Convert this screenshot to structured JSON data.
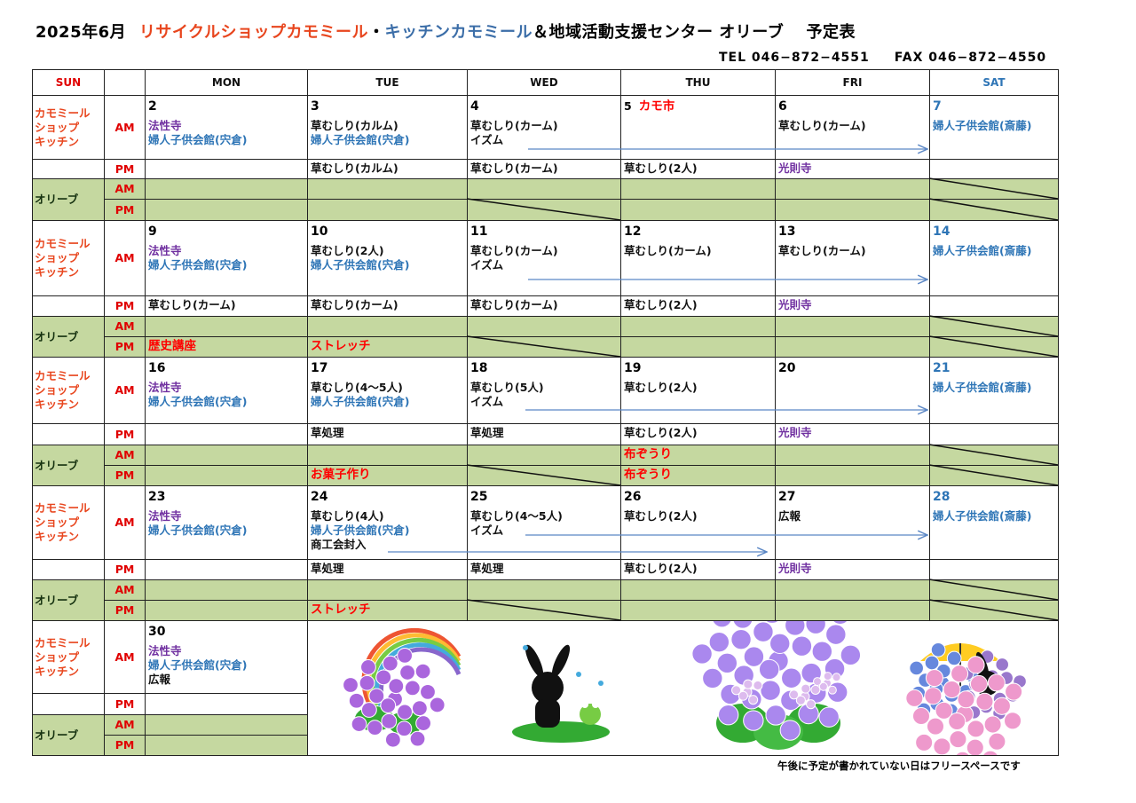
{
  "title": {
    "month": "2025年6月",
    "shop": "リサイクルショップカモミール",
    "dot": "・",
    "kitchen": "キッチンカモミール",
    "rest": "＆地域活動支援センター オリーブ　 予定表"
  },
  "contact": {
    "tel": "TEL 046−872−4551",
    "fax": "FAX 046−872−4550"
  },
  "colors": {
    "shop": "#e8461e",
    "kitchen": "#3c6ea8",
    "olive_bg": "#c5d8a0",
    "purple": "#7030a0",
    "blue": "#2e75b6",
    "red": "#ff0000",
    "arrow": "#5b87c5"
  },
  "days": [
    "SUN",
    "",
    "MON",
    "TUE",
    "WED",
    "THU",
    "FRI",
    "SAT"
  ],
  "row_labels": {
    "kitchen": [
      "カモミール",
      "ショップ",
      "キッチン"
    ],
    "olive": "オリーブ",
    "am": "AM",
    "pm": "PM"
  },
  "weeks": [
    {
      "days": [
        {
          "date": "2",
          "am": [
            {
              "t": "法性寺",
              "c": "purple"
            },
            {
              "t": "婦人子供会館(宍倉)",
              "c": "blue"
            }
          ],
          "pm": [],
          "oam": [],
          "opm": []
        },
        {
          "date": "3",
          "am": [
            {
              "t": "草むしり(カルム)",
              "c": "black"
            },
            {
              "t": "婦人子供会館(宍倉)",
              "c": "blue"
            }
          ],
          "pm": [
            {
              "t": "草むしり(カルム)",
              "c": "black"
            }
          ],
          "oam": [],
          "opm": []
        },
        {
          "date": "4",
          "am": [
            {
              "t": "草むしり(カーム)",
              "c": "black"
            },
            {
              "t": "イズム",
              "c": "black"
            }
          ],
          "pm": [
            {
              "t": "草むしり(カーム)",
              "c": "black"
            }
          ],
          "oam": [],
          "opm": []
        },
        {
          "date": "5",
          "event": "カモ市",
          "am": [],
          "pm": [
            {
              "t": "草むしり(2人)",
              "c": "black"
            }
          ],
          "oam": [],
          "opm": []
        },
        {
          "date": "6",
          "am": [
            {
              "t": "草むしり(カーム)",
              "c": "black"
            }
          ],
          "pm": [
            {
              "t": "光則寺",
              "c": "purple"
            }
          ],
          "oam": [],
          "opm": []
        },
        {
          "date": "7",
          "am": [
            {
              "t": "婦人子供会館(斎藤)",
              "c": "blue"
            }
          ],
          "pm": [],
          "oam": [],
          "opm": []
        }
      ]
    },
    {
      "days": [
        {
          "date": "9",
          "am": [
            {
              "t": "法性寺",
              "c": "purple"
            },
            {
              "t": "婦人子供会館(宍倉)",
              "c": "blue"
            }
          ],
          "pm": [
            {
              "t": "草むしり(カーム)",
              "c": "black"
            }
          ],
          "oam": [],
          "opm": [
            {
              "t": "歴史講座",
              "c": "red"
            }
          ]
        },
        {
          "date": "10",
          "am": [
            {
              "t": "草むしり(2人)",
              "c": "black"
            },
            {
              "t": "婦人子供会館(宍倉)",
              "c": "blue"
            }
          ],
          "pm": [
            {
              "t": "草むしり(カーム)",
              "c": "black"
            }
          ],
          "oam": [],
          "opm": [
            {
              "t": "ストレッチ",
              "c": "red"
            }
          ]
        },
        {
          "date": "11",
          "am": [
            {
              "t": "草むしり(カーム)",
              "c": "black"
            },
            {
              "t": "イズム",
              "c": "black"
            }
          ],
          "pm": [
            {
              "t": "草むしり(カーム)",
              "c": "black"
            }
          ],
          "oam": [],
          "opm": []
        },
        {
          "date": "12",
          "am": [
            {
              "t": "草むしり(カーム)",
              "c": "black"
            }
          ],
          "pm": [
            {
              "t": "草むしり(2人)",
              "c": "black"
            }
          ],
          "oam": [],
          "opm": []
        },
        {
          "date": "13",
          "am": [
            {
              "t": "草むしり(カーム)",
              "c": "black"
            }
          ],
          "pm": [
            {
              "t": "光則寺",
              "c": "purple"
            }
          ],
          "oam": [],
          "opm": []
        },
        {
          "date": "14",
          "am": [
            {
              "t": "婦人子供会館(斎藤)",
              "c": "blue"
            }
          ],
          "pm": [],
          "oam": [],
          "opm": []
        }
      ]
    },
    {
      "days": [
        {
          "date": "16",
          "am": [
            {
              "t": "法性寺",
              "c": "purple"
            },
            {
              "t": "婦人子供会館(宍倉)",
              "c": "blue"
            }
          ],
          "pm": [],
          "oam": [],
          "opm": []
        },
        {
          "date": "17",
          "am": [
            {
              "t": "草むしり(4～5人)",
              "c": "black"
            },
            {
              "t": "婦人子供会館(宍倉)",
              "c": "blue"
            }
          ],
          "pm": [
            {
              "t": "草処理",
              "c": "black"
            }
          ],
          "oam": [],
          "opm": [
            {
              "t": "お菓子作り",
              "c": "red"
            }
          ]
        },
        {
          "date": "18",
          "am": [
            {
              "t": "草むしり(5人)",
              "c": "black"
            },
            {
              "t": "イズム",
              "c": "black"
            }
          ],
          "pm": [
            {
              "t": "草処理",
              "c": "black"
            }
          ],
          "oam": [],
          "opm": []
        },
        {
          "date": "19",
          "am": [
            {
              "t": "草むしり(2人)",
              "c": "black"
            }
          ],
          "pm": [
            {
              "t": "草むしり(2人)",
              "c": "black"
            }
          ],
          "oam": [
            {
              "t": "布ぞうり",
              "c": "red"
            }
          ],
          "opm": [
            {
              "t": "布ぞうり",
              "c": "red"
            }
          ]
        },
        {
          "date": "20",
          "am": [],
          "pm": [
            {
              "t": "光則寺",
              "c": "purple"
            }
          ],
          "oam": [],
          "opm": []
        },
        {
          "date": "21",
          "am": [
            {
              "t": "婦人子供会館(斎藤)",
              "c": "blue"
            }
          ],
          "pm": [],
          "oam": [],
          "opm": []
        }
      ]
    },
    {
      "days": [
        {
          "date": "23",
          "am": [
            {
              "t": "法性寺",
              "c": "purple"
            },
            {
              "t": "婦人子供会館(宍倉)",
              "c": "blue"
            }
          ],
          "pm": [],
          "oam": [],
          "opm": []
        },
        {
          "date": "24",
          "am": [
            {
              "t": "草むしり(4人)",
              "c": "black"
            },
            {
              "t": "婦人子供会館(宍倉)",
              "c": "blue"
            },
            {
              "t": "商工会封入",
              "c": "black"
            }
          ],
          "pm": [
            {
              "t": "草処理",
              "c": "black"
            }
          ],
          "oam": [],
          "opm": [
            {
              "t": "ストレッチ",
              "c": "red"
            }
          ]
        },
        {
          "date": "25",
          "am": [
            {
              "t": "草むしり(4～5人)",
              "c": "black"
            },
            {
              "t": "イズム",
              "c": "black"
            }
          ],
          "pm": [
            {
              "t": "草処理",
              "c": "black"
            }
          ],
          "oam": [],
          "opm": []
        },
        {
          "date": "26",
          "am": [
            {
              "t": "草むしり(2人)",
              "c": "black"
            }
          ],
          "pm": [
            {
              "t": "草むしり(2人)",
              "c": "black"
            }
          ],
          "oam": [],
          "opm": []
        },
        {
          "date": "27",
          "am": [
            {
              "t": "広報",
              "c": "black"
            }
          ],
          "pm": [
            {
              "t": "光則寺",
              "c": "purple"
            }
          ],
          "oam": [],
          "opm": []
        },
        {
          "date": "28",
          "am": [
            {
              "t": "婦人子供会館(斎藤)",
              "c": "blue"
            }
          ],
          "pm": [],
          "oam": [],
          "opm": []
        }
      ]
    },
    {
      "days": [
        {
          "date": "30",
          "am": [
            {
              "t": "法性寺",
              "c": "purple"
            },
            {
              "t": "婦人子供会館(宍倉)",
              "c": "blue"
            },
            {
              "t": "広報",
              "c": "black"
            }
          ],
          "pm": [],
          "oam": [],
          "opm": []
        }
      ]
    }
  ],
  "illustrations": [
    "rainbow-hydrangea",
    "rabbit-and-frog-in-rain",
    "hydrangea",
    "rabbit-with-umbrella-hydrangea"
  ],
  "footer_note": "午後に予定が書かれていない日はフリースペースです"
}
